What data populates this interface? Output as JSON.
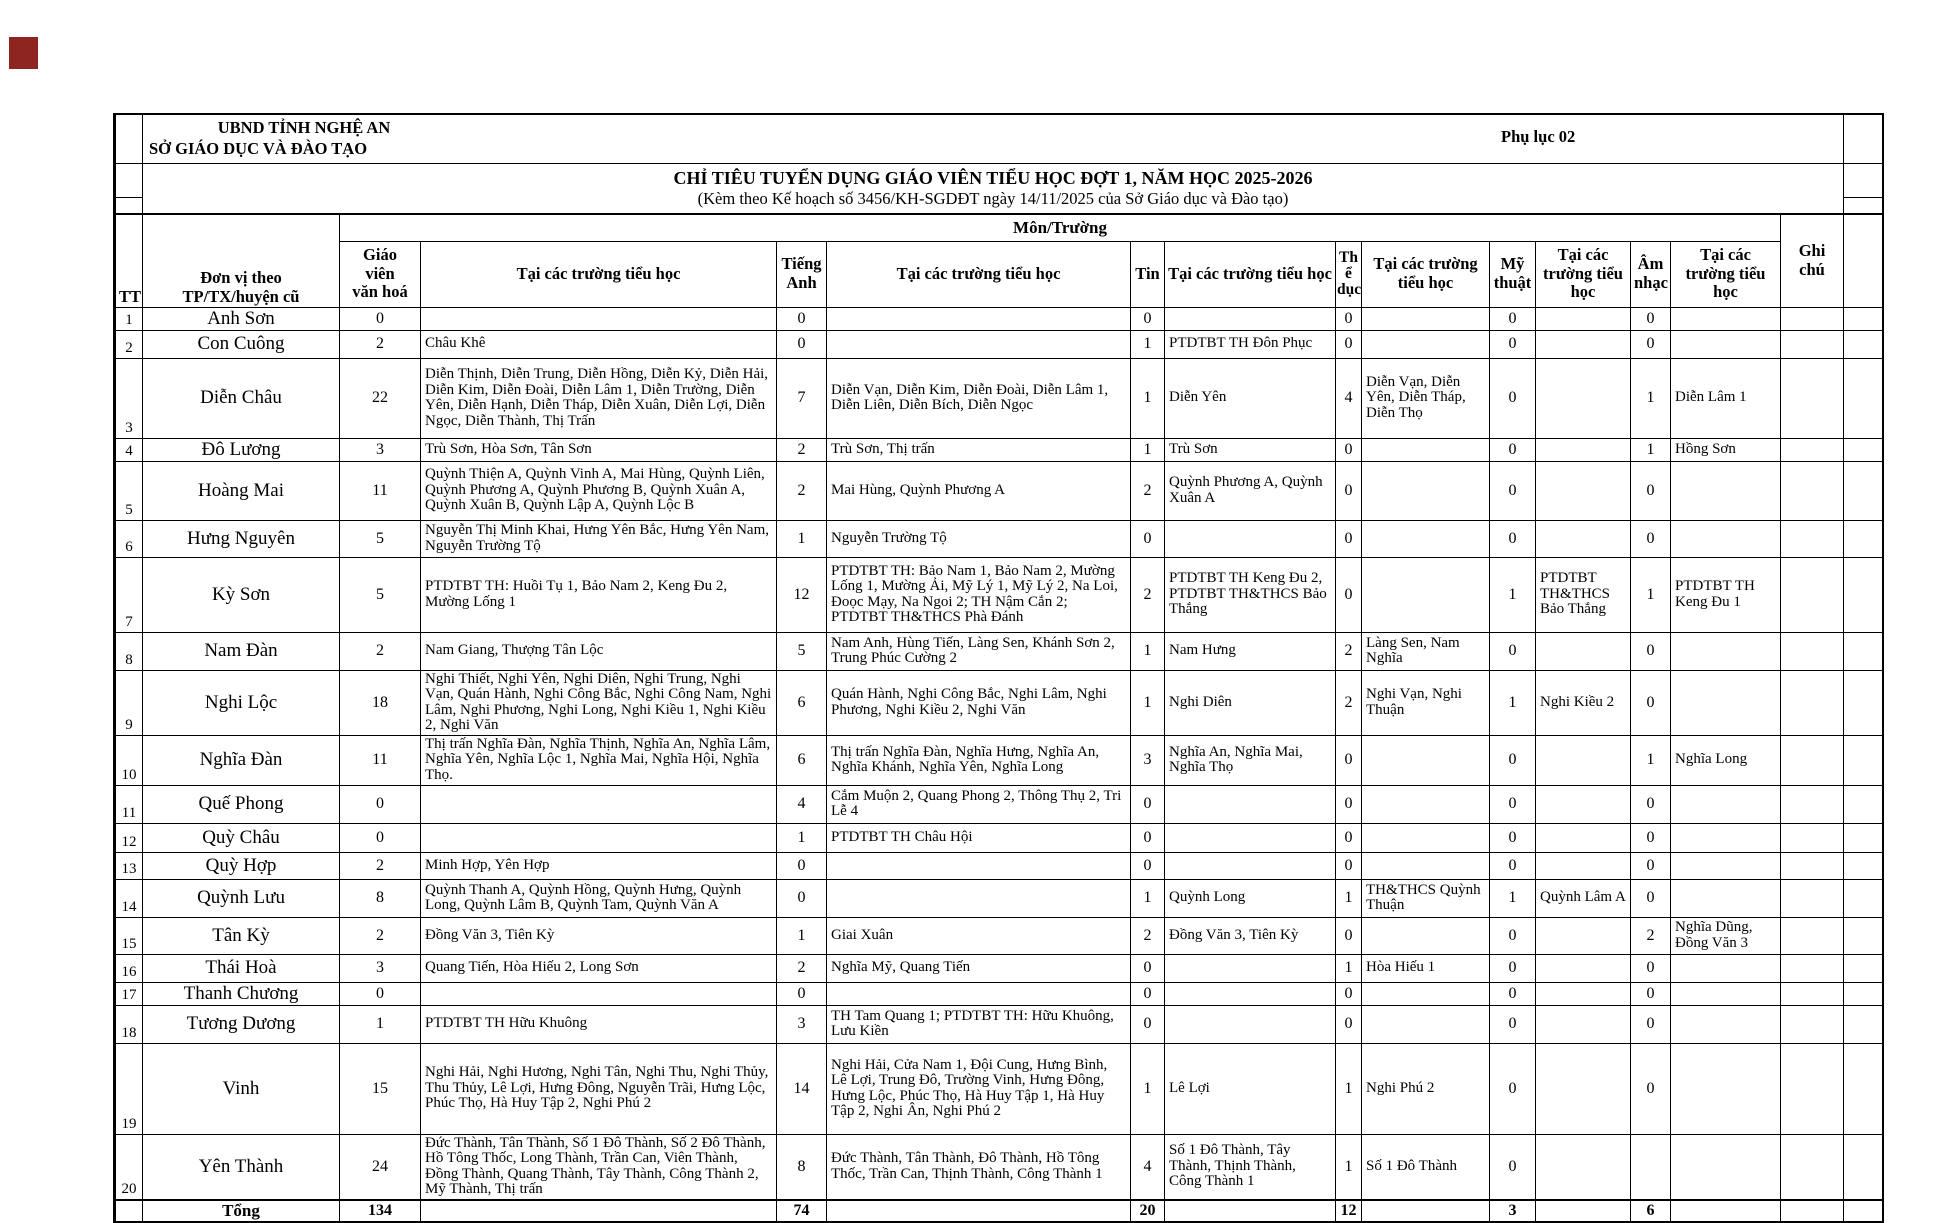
{
  "header": {
    "org_line1": "UBND TỈNH NGHỆ AN",
    "org_line2": "SỞ GIÁO DỤC VÀ ĐÀO TẠO",
    "appendix": "Phụ lục 02",
    "title": "CHỈ TIÊU TUYỂN DỤNG GIÁO VIÊN TIỂU HỌC ĐỢT 1, NĂM HỌC 2025-2026",
    "subtitle": "(Kèm theo Kế hoạch số 3456/KH-SGDĐT ngày 14/11/2025 của Sở Giáo dục và Đào tạo)"
  },
  "table": {
    "group_header": "Môn/Trường",
    "columns": {
      "tt": "TT",
      "unit": "Đơn vị theo\nTP/TX/huyện cũ",
      "gv": "Giáo\nviên\nvăn hoá",
      "schools": "Tại các trường tiểu học",
      "ta": "Tiếng\nAnh",
      "tin": "Tin",
      "td": "Th\nể\ndục",
      "mt": "Mỹ\nthuật",
      "an": "Âm\nnhạc",
      "note": "Ghi chú"
    },
    "rows": [
      {
        "tt": "1",
        "unit": "Anh Sơn",
        "gv": "0",
        "gv_s": "",
        "ta": "0",
        "ta_s": "",
        "tin": "0",
        "tin_s": "",
        "td": "0",
        "td_s": "",
        "mt": "0",
        "mt_s": "",
        "an": "0",
        "an_s": "",
        "note": ""
      },
      {
        "tt": "2",
        "unit": "Con Cuông",
        "gv": "2",
        "gv_s": "Châu Khê",
        "ta": "0",
        "ta_s": "",
        "tin": "1",
        "tin_s": "PTDTBT TH Đôn Phục",
        "td": "0",
        "td_s": "",
        "mt": "0",
        "mt_s": "",
        "an": "0",
        "an_s": "",
        "note": ""
      },
      {
        "tt": "3",
        "unit": "Diễn Châu",
        "gv": "22",
        "gv_s": "Diễn Thịnh, Diễn Trung, Diễn Hồng, Diễn Kỷ, Diễn Hải, Diễn Kim, Diễn Đoài, Diễn Lâm 1, Diễn Trường, Diễn Yên, Diễn Hạnh, Diễn Tháp, Diễn Xuân, Diễn Lợi, Diễn Ngọc, Diễn Thành, Thị Trấn",
        "ta": "7",
        "ta_s": "Diễn Vạn, Diễn Kim, Diễn Đoài, Diễn Lâm 1, Diễn Liên, Diễn Bích, Diễn Ngọc",
        "tin": "1",
        "tin_s": "Diễn Yên",
        "td": "4",
        "td_s": "Diễn Vạn, Diễn Yên, Diễn Tháp, Diễn Thọ",
        "mt": "0",
        "mt_s": "",
        "an": "1",
        "an_s": "Diễn Lâm 1",
        "note": ""
      },
      {
        "tt": "4",
        "unit": "Đô Lương",
        "gv": "3",
        "gv_s": "Trù Sơn, Hòa Sơn, Tân Sơn",
        "ta": "2",
        "ta_s": "Trù Sơn, Thị trấn",
        "tin": "1",
        "tin_s": "Trù Sơn",
        "td": "0",
        "td_s": "",
        "mt": "0",
        "mt_s": "",
        "an": "1",
        "an_s": "Hồng Sơn",
        "note": ""
      },
      {
        "tt": "5",
        "unit": "Hoàng Mai",
        "gv": "11",
        "gv_s": "Quỳnh Thiện A, Quỳnh Vinh A, Mai Hùng, Quỳnh Liên, Quỳnh Phương A, Quỳnh Phương B, Quỳnh Xuân A, Quỳnh Xuân B, Quỳnh Lập A, Quỳnh Lộc B",
        "ta": "2",
        "ta_s": "Mai Hùng, Quỳnh Phương A",
        "tin": "2",
        "tin_s": "Quỳnh Phương A, Quỳnh Xuân A",
        "td": "0",
        "td_s": "",
        "mt": "0",
        "mt_s": "",
        "an": "0",
        "an_s": "",
        "note": ""
      },
      {
        "tt": "6",
        "unit": "Hưng Nguyên",
        "gv": "5",
        "gv_s": "Nguyễn Thị Minh Khai, Hưng Yên Bắc, Hưng Yên Nam, Nguyễn Trường Tộ",
        "ta": "1",
        "ta_s": "Nguyễn Trường Tộ",
        "tin": "0",
        "tin_s": "",
        "td": "0",
        "td_s": "",
        "mt": "0",
        "mt_s": "",
        "an": "0",
        "an_s": "",
        "note": ""
      },
      {
        "tt": "7",
        "unit": "Kỳ Sơn",
        "gv": "5",
        "gv_s": "PTDTBT TH: Huồi Tụ 1, Bảo Nam 2, Keng Đu 2, Mường Lống 1",
        "ta": "12",
        "ta_s": "PTDTBT TH: Bảo Nam 1, Bảo Nam 2, Mường Lống 1, Mường Ải, Mỹ Lý 1, Mỹ Lý 2, Na Loi, Đoọc Mạy, Na Ngoi 2; TH Nậm Cắn 2; PTDTBT TH&THCS Phà Đánh",
        "tin": "2",
        "tin_s": "PTDTBT TH Keng Đu 2, PTDTBT TH&THCS Bảo Thắng",
        "td": "0",
        "td_s": "",
        "mt": "1",
        "mt_s": "PTDTBT TH&THCS Bảo Thắng",
        "an": "1",
        "an_s": "PTDTBT TH Keng Đu 1",
        "note": ""
      },
      {
        "tt": "8",
        "unit": "Nam Đàn",
        "gv": "2",
        "gv_s": "Nam Giang, Thượng Tân Lộc",
        "ta": "5",
        "ta_s": "Nam Anh, Hùng Tiến, Làng Sen, Khánh Sơn 2, Trung Phúc Cường 2",
        "tin": "1",
        "tin_s": "Nam Hưng",
        "td": "2",
        "td_s": "Làng Sen, Nam Nghĩa",
        "mt": "0",
        "mt_s": "",
        "an": "0",
        "an_s": "",
        "note": ""
      },
      {
        "tt": "9",
        "unit": "Nghi Lộc",
        "gv": "18",
        "gv_s": "Nghi Thiết, Nghi Yên, Nghi Diên, Nghi Trung, Nghi Vạn, Quán Hành, Nghi Công Bắc, Nghi Công Nam, Nghi Lâm, Nghi Phương, Nghi Long, Nghi Kiều 1, Nghi Kiều 2, Nghi Văn",
        "ta": "6",
        "ta_s": "Quán Hành, Nghi Công Bắc, Nghi Lâm, Nghi Phương, Nghi Kiều 2, Nghi Văn",
        "tin": "1",
        "tin_s": "Nghi Diên",
        "td": "2",
        "td_s": "Nghi Vạn, Nghi Thuận",
        "mt": "1",
        "mt_s": "Nghi Kiều 2",
        "an": "0",
        "an_s": "",
        "note": ""
      },
      {
        "tt": "10",
        "unit": "Nghĩa Đàn",
        "gv": "11",
        "gv_s": "Thị trấn Nghĩa Đàn, Nghĩa Thịnh, Nghĩa An, Nghĩa Lâm, Nghĩa Yên, Nghĩa Lộc 1, Nghĩa Mai, Nghĩa Hội, Nghĩa Thọ.",
        "ta": "6",
        "ta_s": "Thị trấn Nghĩa Đàn, Nghĩa Hưng, Nghĩa An, Nghĩa Khánh, Nghĩa Yên, Nghĩa Long",
        "tin": "3",
        "tin_s": "Nghĩa An, Nghĩa Mai, Nghĩa Thọ",
        "td": "0",
        "td_s": "",
        "mt": "0",
        "mt_s": "",
        "an": "1",
        "an_s": "Nghĩa Long",
        "note": ""
      },
      {
        "tt": "11",
        "unit": "Quế Phong",
        "gv": "0",
        "gv_s": "",
        "ta": "4",
        "ta_s": "Cắm Muộn 2, Quang Phong 2, Thông Thụ 2, Tri Lễ 4",
        "tin": "0",
        "tin_s": "",
        "td": "0",
        "td_s": "",
        "mt": "0",
        "mt_s": "",
        "an": "0",
        "an_s": "",
        "note": ""
      },
      {
        "tt": "12",
        "unit": "Quỳ Châu",
        "gv": "0",
        "gv_s": "",
        "ta": "1",
        "ta_s": "PTDTBT TH Châu Hội",
        "tin": "0",
        "tin_s": "",
        "td": "0",
        "td_s": "",
        "mt": "0",
        "mt_s": "",
        "an": "0",
        "an_s": "",
        "note": ""
      },
      {
        "tt": "13",
        "unit": "Quỳ Hợp",
        "gv": "2",
        "gv_s": "Minh Hợp, Yên Hợp",
        "ta": "0",
        "ta_s": "",
        "tin": "0",
        "tin_s": "",
        "td": "0",
        "td_s": "",
        "mt": "0",
        "mt_s": "",
        "an": "0",
        "an_s": "",
        "note": ""
      },
      {
        "tt": "14",
        "unit": "Quỳnh Lưu",
        "gv": "8",
        "gv_s": "Quỳnh Thanh A, Quỳnh Hồng, Quỳnh Hưng, Quỳnh Long, Quỳnh Lâm B, Quỳnh Tam, Quỳnh Văn A",
        "ta": "0",
        "ta_s": "",
        "tin": "1",
        "tin_s": "Quỳnh Long",
        "td": "1",
        "td_s": "TH&THCS Quỳnh Thuận",
        "mt": "1",
        "mt_s": "Quỳnh Lâm A",
        "an": "0",
        "an_s": "",
        "note": ""
      },
      {
        "tt": "15",
        "unit": "Tân Kỳ",
        "gv": "2",
        "gv_s": "Đồng Văn 3, Tiên Kỳ",
        "ta": "1",
        "ta_s": "Giai Xuân",
        "tin": "2",
        "tin_s": "Đồng Văn 3, Tiên Kỳ",
        "td": "0",
        "td_s": "",
        "mt": "0",
        "mt_s": "",
        "an": "2",
        "an_s": "Nghĩa Dũng, Đồng Văn 3",
        "note": ""
      },
      {
        "tt": "16",
        "unit": "Thái Hoà",
        "gv": "3",
        "gv_s": "Quang Tiến, Hòa Hiếu 2, Long Sơn",
        "ta": "2",
        "ta_s": "Nghĩa Mỹ, Quang Tiến",
        "tin": "0",
        "tin_s": "",
        "td": "1",
        "td_s": "Hòa Hiếu 1",
        "mt": "0",
        "mt_s": "",
        "an": "0",
        "an_s": "",
        "note": ""
      },
      {
        "tt": "17",
        "unit": "Thanh Chương",
        "gv": "0",
        "gv_s": "",
        "ta": "0",
        "ta_s": "",
        "tin": "0",
        "tin_s": "",
        "td": "0",
        "td_s": "",
        "mt": "0",
        "mt_s": "",
        "an": "0",
        "an_s": "",
        "note": ""
      },
      {
        "tt": "18",
        "unit": "Tương Dương",
        "gv": "1",
        "gv_s": "PTDTBT TH Hữu Khuông",
        "ta": "3",
        "ta_s": "TH Tam Quang 1; PTDTBT TH: Hữu Khuông, Lưu Kiền",
        "tin": "0",
        "tin_s": "",
        "td": "0",
        "td_s": "",
        "mt": "0",
        "mt_s": "",
        "an": "0",
        "an_s": "",
        "note": ""
      },
      {
        "tt": "19",
        "unit": "Vinh",
        "gv": "15",
        "gv_s": "Nghi Hải, Nghi Hương, Nghi Tân, Nghi Thu, Nghi Thủy, Thu Thủy, Lê Lợi, Hưng Đông, Nguyễn Trãi, Hưng Lộc, Phúc Thọ, Hà Huy Tập 2, Nghi Phú 2",
        "ta": "14",
        "ta_s": "Nghi Hải, Cửa Nam 1, Đội Cung, Hưng Bình, Lê Lợi, Trung Đô, Trường Vinh, Hưng Đông, Hưng Lộc, Phúc Thọ, Hà Huy Tập 1, Hà Huy Tập 2, Nghi Ân, Nghi Phú 2",
        "tin": "1",
        "tin_s": "Lê Lợi",
        "td": "1",
        "td_s": "Nghi Phú 2",
        "mt": "0",
        "mt_s": "",
        "an": "0",
        "an_s": "",
        "note": ""
      },
      {
        "tt": "20",
        "unit": "Yên Thành",
        "gv": "24",
        "gv_s": "Đức Thành, Tân Thành, Số 1 Đô Thành, Số 2 Đô Thành, Hồ Tông Thốc, Long Thành, Trần Can, Viên Thành, Đồng Thành, Quang Thành, Tây Thành, Công Thành 2, Mỹ Thành, Thị trấn",
        "ta": "8",
        "ta_s": "Đức Thành, Tân Thành, Đô Thành, Hồ Tông Thốc, Trần Can, Thịnh Thành, Công Thành 1",
        "tin": "4",
        "tin_s": "Số 1 Đô Thành, Tây Thành, Thịnh Thành, Công Thành 1",
        "td": "1",
        "td_s": "Số 1 Đô Thành",
        "mt": "0",
        "mt_s": "",
        "an": "",
        "an_s": "",
        "note": ""
      }
    ],
    "total": {
      "label": "Tổng",
      "gv": "134",
      "ta": "74",
      "tin": "20",
      "td": "12",
      "mt": "3",
      "an": "6"
    }
  }
}
